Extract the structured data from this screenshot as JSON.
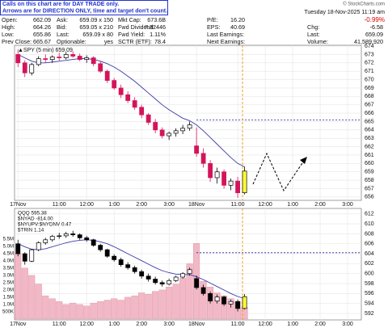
{
  "notice": [
    "Calls on this chart are for DAY TRADE only.",
    "Arrows are for DIRECTION ONLY, time and target don't count."
  ],
  "header": {
    "stamp": "© StockCharts.com",
    "date": "Tuesday 18-Nov-2025 11:19 am",
    "change_pct": "-0.99%",
    "rows": [
      [
        [
          "Open:",
          "662.09"
        ],
        [
          "Ask:",
          "659.09 x 150"
        ],
        [
          "Mkt Cap:",
          "673.6B"
        ],
        [
          "P/E:",
          "16.20"
        ]
      ],
      [
        [
          "High:",
          "664.26"
        ],
        [
          "Bid:",
          "659.05 x 210"
        ],
        [
          "Fwd Dividend:",
          "7.32446"
        ],
        [
          "EPS:",
          "40.69"
        ],
        [
          "Chg:",
          "-6.58"
        ]
      ],
      [
        [
          "Low:",
          "655.86"
        ],
        [
          "Last:",
          "659.09 x 80"
        ],
        [
          "Fwd Yield:",
          "1.11%"
        ],
        [
          "Last Earnings:"
        ],
        [
          "Last:",
          "659.09"
        ]
      ],
      [
        [
          "Prev Close:",
          "665.67"
        ],
        [
          "Optionable:",
          "yes"
        ],
        [
          "SCTR (ETF):",
          "78.4"
        ],
        [
          "Next Earnings:"
        ],
        [
          "Volume:",
          "41,589,920"
        ]
      ]
    ]
  },
  "chart_data": [
    {
      "type": "candlestick",
      "title": "▲SPY (5 min) 659.09",
      "x": [
        0,
        1,
        2,
        3,
        4,
        5,
        6,
        7,
        8,
        9,
        10,
        11,
        12,
        13,
        14,
        15,
        16,
        17,
        18,
        19,
        20,
        21,
        22,
        23,
        24,
        25,
        26,
        27,
        28,
        29,
        30,
        31,
        32,
        33
      ],
      "open": [
        673.0,
        672.0,
        670.8,
        671.8,
        672.5,
        672.4,
        672.7,
        672.6,
        673.0,
        672.8,
        672.4,
        672.6,
        671.9,
        671.0,
        669.9,
        669.0,
        668.2,
        667.5,
        666.7,
        665.8,
        664.9,
        664.0,
        663.3,
        663.6,
        663.9,
        664.2,
        662.1,
        661.2,
        660.0,
        658.3,
        659.0,
        657.4,
        657.9,
        656.5
      ],
      "high": [
        673.6,
        672.3,
        672.0,
        672.8,
        673.0,
        672.9,
        673.2,
        673.3,
        673.4,
        673.1,
        672.9,
        672.8,
        672.2,
        671.2,
        670.2,
        669.4,
        668.6,
        667.9,
        667.0,
        666.0,
        665.3,
        664.3,
        663.8,
        664.2,
        664.6,
        665.0,
        664.3,
        661.8,
        660.4,
        659.5,
        659.3,
        658.2,
        658.4,
        659.6
      ],
      "low": [
        671.5,
        670.3,
        670.5,
        671.6,
        672.0,
        672.0,
        672.3,
        672.4,
        672.6,
        672.2,
        672.0,
        671.6,
        670.8,
        669.6,
        668.8,
        667.8,
        667.2,
        666.4,
        665.4,
        664.6,
        663.6,
        663.0,
        662.8,
        663.2,
        663.5,
        663.9,
        660.8,
        659.5,
        657.8,
        657.6,
        657.0,
        656.8,
        655.9,
        656.3
      ],
      "close": [
        672.0,
        670.8,
        671.8,
        672.5,
        672.4,
        672.7,
        672.6,
        673.0,
        672.8,
        672.4,
        672.6,
        671.9,
        671.0,
        669.9,
        669.0,
        668.2,
        667.5,
        666.7,
        665.8,
        664.9,
        664.0,
        663.3,
        663.6,
        663.9,
        664.2,
        664.6,
        661.2,
        660.0,
        658.3,
        659.0,
        657.4,
        657.9,
        656.5,
        659.09
      ],
      "up_color": "#000000",
      "down_color": "#d4145a",
      "highlight_color": "#ffff33",
      "ma": {
        "color": "#3a3aa8",
        "values": [
          673.0,
          672.6,
          672.2,
          672.0,
          672.0,
          672.1,
          672.2,
          672.3,
          672.4,
          672.5,
          672.5,
          672.4,
          672.2,
          671.9,
          671.5,
          671.0,
          670.4,
          669.8,
          669.1,
          668.4,
          667.7,
          667.0,
          666.4,
          665.9,
          665.4,
          665.1,
          664.6,
          663.9,
          663.1,
          662.3,
          661.5,
          660.7,
          660.0,
          659.6
        ]
      },
      "hline": {
        "value": 665.2,
        "from": 26,
        "color": "#1a1a9c"
      },
      "vline": {
        "value": 32.7,
        "color": "#f0a020"
      },
      "xlim": [
        -0.5,
        50
      ],
      "xticks": [
        {
          "value": 0,
          "label": "17Nov"
        },
        {
          "value": 6,
          "label": "11:00"
        },
        {
          "value": 10,
          "label": "12:00"
        },
        {
          "value": 14,
          "label": "1:00"
        },
        {
          "value": 18,
          "label": "2:00"
        },
        {
          "value": 22,
          "label": "3:00"
        },
        {
          "value": 26,
          "label": "18Nov"
        },
        {
          "value": 32,
          "label": "11:00"
        },
        {
          "value": 36,
          "label": "12:00"
        },
        {
          "value": 40,
          "label": "1:00"
        },
        {
          "value": 44,
          "label": "2:00"
        },
        {
          "value": 48,
          "label": "3:00"
        }
      ],
      "ylim": [
        655.6,
        674.1
      ],
      "yticks": [
        656,
        657,
        658,
        659,
        660,
        661,
        662,
        663,
        664,
        665,
        666,
        667,
        668,
        669,
        670,
        671,
        672,
        673,
        674
      ],
      "grid": true
    },
    {
      "type": "candlestick",
      "legend_lines": [
        "QQQ 595.38",
        "$NYAD -814.00",
        "$NYUPV:$NYDNV 0.47",
        "$TRIN 1.14"
      ],
      "x": [
        0,
        1,
        2,
        3,
        4,
        5,
        6,
        7,
        8,
        9,
        10,
        11,
        12,
        13,
        14,
        15,
        16,
        17,
        18,
        19,
        20,
        21,
        22,
        23,
        24,
        25,
        26,
        27,
        28,
        29,
        30,
        31,
        32,
        33
      ],
      "open": [
        606.0,
        604.0,
        602.5,
        604.8,
        606.2,
        606.8,
        607.5,
        607.6,
        608.0,
        607.8,
        607.2,
        606.8,
        605.7,
        604.8,
        603.5,
        602.8,
        601.8,
        601.2,
        600.4,
        599.5,
        598.9,
        598.2,
        597.9,
        598.6,
        599.3,
        600.0,
        599.0,
        597.2,
        596.0,
        594.5,
        595.3,
        593.9,
        594.4,
        593.0
      ],
      "high": [
        606.8,
        604.3,
        605.0,
        606.5,
        607.2,
        607.8,
        608.2,
        608.4,
        608.6,
        608.1,
        607.6,
        607.0,
        606.0,
        605.0,
        603.9,
        603.2,
        602.3,
        601.6,
        600.8,
        600.0,
        599.4,
        598.6,
        599.0,
        599.6,
        600.3,
        601.2,
        599.6,
        597.8,
        596.4,
        595.8,
        595.6,
        594.8,
        594.8,
        595.9
      ],
      "low": [
        603.5,
        601.8,
        602.3,
        604.5,
        605.8,
        606.4,
        607.0,
        607.2,
        607.4,
        606.8,
        606.4,
        605.4,
        604.4,
        603.2,
        602.4,
        601.4,
        600.8,
        600.0,
        599.0,
        598.4,
        597.8,
        597.4,
        597.6,
        598.3,
        599.0,
        599.6,
        596.8,
        595.6,
        594.0,
        594.0,
        593.5,
        593.2,
        592.4,
        592.8
      ],
      "close": [
        604.0,
        602.5,
        604.8,
        606.2,
        606.8,
        607.5,
        607.6,
        608.0,
        607.8,
        607.2,
        606.8,
        605.7,
        604.8,
        603.5,
        602.8,
        601.8,
        601.2,
        600.4,
        599.5,
        598.9,
        598.2,
        597.9,
        598.6,
        599.3,
        600.0,
        600.8,
        597.2,
        596.0,
        594.5,
        595.3,
        593.9,
        594.4,
        593.0,
        595.38
      ],
      "up_color": "#000000",
      "down_color": "#000000",
      "highlight_color": "#ffff33",
      "ma": {
        "color": "#3a3aa8",
        "values": [
          606.0,
          605.4,
          604.9,
          604.8,
          605.0,
          605.4,
          605.8,
          606.2,
          606.5,
          606.7,
          606.8,
          606.7,
          606.4,
          606.0,
          605.4,
          604.7,
          604.0,
          603.3,
          602.6,
          601.9,
          601.2,
          600.6,
          600.2,
          599.9,
          599.8,
          599.8,
          599.4,
          598.8,
          598.1,
          597.4,
          596.7,
          596.0,
          595.4,
          595.0
        ]
      },
      "volume": {
        "color": "#f2b8c6",
        "values": [
          4500000,
          3500000,
          3000000,
          2400000,
          1600000,
          1400000,
          1200000,
          1000000,
          1100000,
          1000000,
          900000,
          1100000,
          1200000,
          1300000,
          1400000,
          1300000,
          1500000,
          1600000,
          1800000,
          1700000,
          1900000,
          2000000,
          2200000,
          2400000,
          2800000,
          3800000,
          5200000,
          2600000,
          2200000,
          1800000,
          1600000,
          1400000,
          1200000,
          800000
        ],
        "ylim": [
          -60000,
          7600000
        ],
        "yticks": [
          {
            "value": 500000,
            "label": "500K"
          },
          {
            "value": 1000000,
            "label": "1.0M"
          },
          {
            "value": 1500000,
            "label": "1.5M"
          },
          {
            "value": 2000000,
            "label": "2.0M"
          },
          {
            "value": 2500000,
            "label": "2.5M"
          },
          {
            "value": 3000000,
            "label": "3.0M"
          },
          {
            "value": 3500000,
            "label": "3.5M"
          },
          {
            "value": 4000000,
            "label": "4.0M"
          },
          {
            "value": 4500000,
            "label": "4.5M"
          },
          {
            "value": 5000000,
            "label": "5.0M"
          },
          {
            "value": 5500000,
            "label": "5.5M"
          }
        ]
      },
      "hline": {
        "value": 604.2,
        "from": 26,
        "color": "#1a1a9c"
      },
      "vline": {
        "value": 32.7,
        "color": "#f0a020"
      },
      "xlim": [
        -0.5,
        50
      ],
      "xticks": [
        {
          "value": 0,
          "label": "17Nov"
        },
        {
          "value": 6,
          "label": "11:00"
        },
        {
          "value": 10,
          "label": "12:00"
        },
        {
          "value": 14,
          "label": "1:00"
        },
        {
          "value": 18,
          "label": "2:00"
        },
        {
          "value": 22,
          "label": "3:00"
        },
        {
          "value": 26,
          "label": "18Nov"
        },
        {
          "value": 32,
          "label": "11:00"
        },
        {
          "value": 36,
          "label": "12:00"
        },
        {
          "value": 40,
          "label": "1:00"
        },
        {
          "value": 44,
          "label": "2:00"
        },
        {
          "value": 48,
          "label": "3:00"
        }
      ],
      "ylim": [
        590.7,
        613.1
      ],
      "yticks": [
        592,
        594,
        596,
        598,
        600,
        602,
        604,
        606,
        608,
        610,
        612
      ],
      "grid": true
    }
  ]
}
